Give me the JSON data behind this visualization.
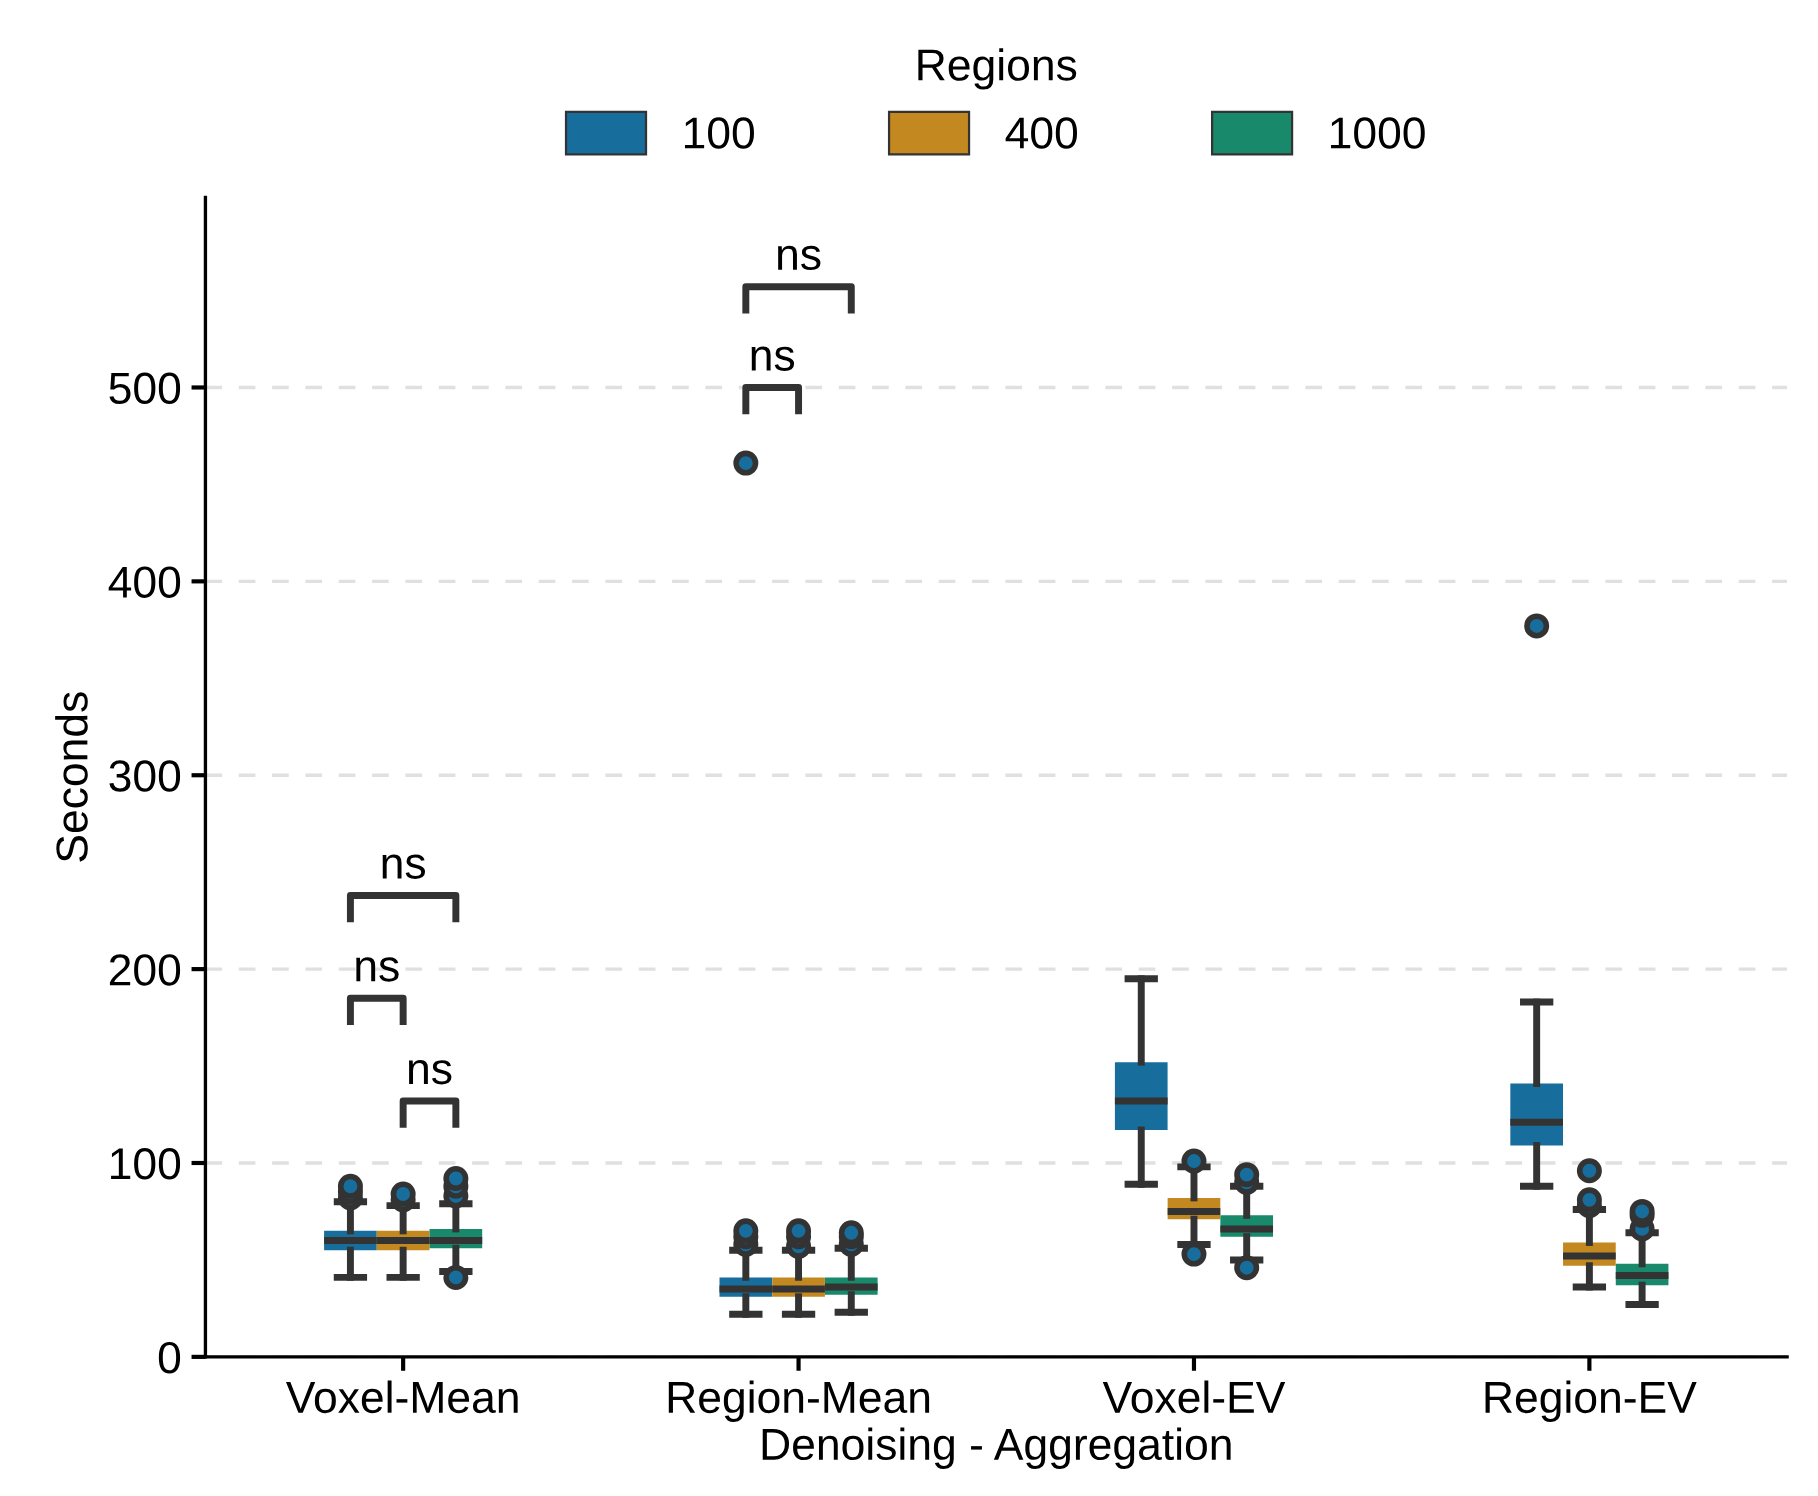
{
  "chart_data": {
    "type": "box",
    "xlabel": "Denoising - Aggregation",
    "ylabel": "Seconds",
    "legend_title": "Regions",
    "legend": "top",
    "categories": [
      "Voxel-Mean",
      "Region-Mean",
      "Voxel-EV",
      "Region-EV"
    ],
    "ylim": [
      0,
      598
    ],
    "yticks": [
      0,
      100,
      200,
      300,
      400,
      500
    ],
    "grid": "y",
    "series": [
      {
        "name": "100",
        "color": "#176d9c",
        "boxes": [
          {
            "low": 41,
            "q1": 55,
            "median": 60,
            "q3": 65,
            "high": 80,
            "outliers": [
              82,
              85,
              88
            ]
          },
          {
            "low": 22,
            "q1": 31,
            "median": 35,
            "q3": 41,
            "high": 55,
            "outliers": [
              58,
              62,
              65,
              461
            ]
          },
          {
            "low": 89,
            "q1": 117,
            "median": 132,
            "q3": 152,
            "high": 195
          },
          {
            "low": 88,
            "q1": 109,
            "median": 121,
            "q3": 141,
            "high": 183,
            "outliers": [
              377
            ]
          }
        ]
      },
      {
        "name": "400",
        "color": "#c38820",
        "boxes": [
          {
            "low": 41,
            "q1": 55,
            "median": 60,
            "q3": 65,
            "high": 78,
            "outliers": [
              81,
              84
            ]
          },
          {
            "low": 22,
            "q1": 31,
            "median": 35,
            "q3": 41,
            "high": 55,
            "outliers": [
              57,
              62,
              65
            ]
          },
          {
            "low": 58,
            "q1": 71,
            "median": 75,
            "q3": 82,
            "high": 98,
            "outliers": [
              53,
              101
            ]
          },
          {
            "low": 36,
            "q1": 47,
            "median": 52,
            "q3": 59,
            "high": 76,
            "outliers": [
              78,
              81,
              96
            ]
          }
        ]
      },
      {
        "name": "1000",
        "color": "#18896b",
        "boxes": [
          {
            "low": 44,
            "q1": 56,
            "median": 60,
            "q3": 66,
            "high": 79,
            "outliers": [
              41,
              83,
              88,
              92
            ]
          },
          {
            "low": 23,
            "q1": 32,
            "median": 36,
            "q3": 41,
            "high": 56,
            "outliers": [
              58,
              62,
              64
            ]
          },
          {
            "low": 50,
            "q1": 62,
            "median": 66,
            "q3": 73,
            "high": 88,
            "outliers": [
              46,
              90,
              94
            ]
          },
          {
            "low": 27,
            "q1": 37,
            "median": 42,
            "q3": 48,
            "high": 64,
            "outliers": [
              66,
              73,
              75
            ]
          }
        ]
      }
    ],
    "annotations": [
      "ns",
      "ns",
      "ns",
      "ns",
      "ns"
    ]
  }
}
